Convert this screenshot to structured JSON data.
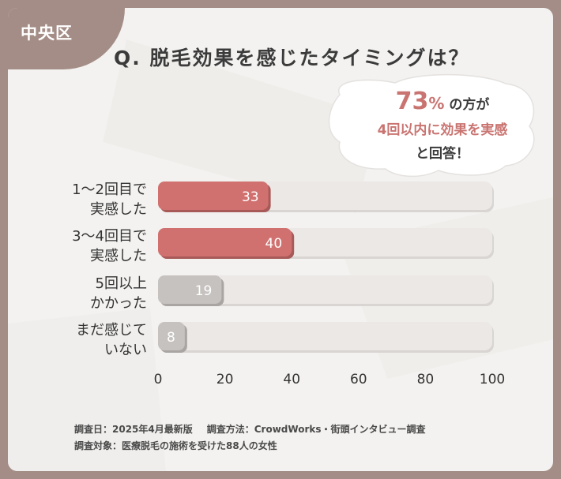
{
  "region_badge": "中央区",
  "title": "Q. 脱毛効果を感じたタイミングは？",
  "bubble": {
    "percent": "73",
    "percent_unit": "%",
    "line1_suffix": "の方が",
    "line2": "4回以内に効果を実感",
    "line3": "と回答！"
  },
  "chart_data": {
    "type": "bar",
    "orientation": "horizontal",
    "categories": [
      [
        "1〜2回目で",
        "実感した"
      ],
      [
        "3〜4回目で",
        "実感した"
      ],
      [
        "5回以上",
        "かかった"
      ],
      [
        "まだ感じて",
        "いない"
      ]
    ],
    "values": [
      33,
      40,
      19,
      8
    ],
    "highlight": [
      true,
      true,
      false,
      false
    ],
    "xlim": [
      0,
      100
    ],
    "xticks": [
      0,
      20,
      40,
      60,
      80,
      100
    ],
    "colors": {
      "highlight": "#d0716f",
      "normal": "#c6c2c0",
      "track": "#ebe8e6"
    }
  },
  "footnote": {
    "date": "調査日：2025年4月最新版",
    "method": "調査方法：CrowdWorks・街頭インタビュー調査",
    "target": "調査対象：医療脱毛の施術を受けた88人の女性"
  }
}
